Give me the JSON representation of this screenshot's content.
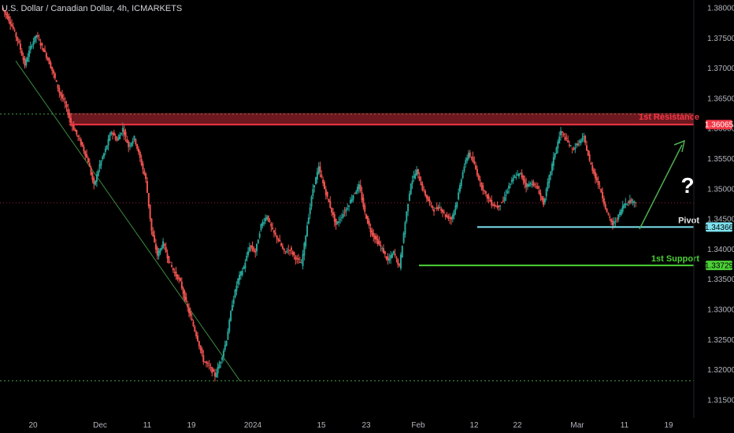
{
  "header": {
    "title": "U.S. Dollar / Canadian Dollar, 4h, ICMARKETS"
  },
  "colors": {
    "background": "#000000",
    "up_candle": "#26a69a",
    "down_candle": "#ef5350",
    "resistance": "#f23645",
    "pivot": "#7ee3f0",
    "support": "#4cd137",
    "dotted_level": "#4caf50",
    "arrow": "#4caf50",
    "axis_text": "#b2b5be"
  },
  "chart_data": {
    "type": "candlestick",
    "symbol": "USDCAD",
    "timeframe": "4h",
    "y_axis": {
      "range": [
        1.3142,
        1.3812
      ],
      "ticks": [
        "1.38000",
        "1.37500",
        "1.37000",
        "1.36500",
        "1.36000",
        "1.35500",
        "1.35000",
        "1.34500",
        "1.34000",
        "1.33500",
        "1.33000",
        "1.32500",
        "1.32000",
        "1.31500"
      ]
    },
    "x_axis": {
      "ticks": [
        "20",
        "Dec",
        "11",
        "19",
        "2024",
        "15",
        "23",
        "Feb",
        "12",
        "22",
        "Mar",
        "11",
        "19"
      ]
    },
    "price_path": [
      [
        0,
        1.38
      ],
      [
        4,
        1.3785
      ],
      [
        8,
        1.3765
      ],
      [
        12,
        1.374
      ],
      [
        16,
        1.3705
      ],
      [
        20,
        1.3735
      ],
      [
        24,
        1.3755
      ],
      [
        28,
        1.3735
      ],
      [
        32,
        1.3715
      ],
      [
        36,
        1.369
      ],
      [
        40,
        1.366
      ],
      [
        44,
        1.364
      ],
      [
        48,
        1.361
      ],
      [
        52,
        1.359
      ],
      [
        56,
        1.357
      ],
      [
        60,
        1.3545
      ],
      [
        64,
        1.3505
      ],
      [
        68,
        1.354
      ],
      [
        72,
        1.3565
      ],
      [
        76,
        1.3595
      ],
      [
        80,
        1.358
      ],
      [
        84,
        1.36
      ],
      [
        88,
        1.357
      ],
      [
        92,
        1.3585
      ],
      [
        96,
        1.355
      ],
      [
        100,
        1.3515
      ],
      [
        104,
        1.343
      ],
      [
        108,
        1.339
      ],
      [
        112,
        1.341
      ],
      [
        116,
        1.338
      ],
      [
        120,
        1.336
      ],
      [
        124,
        1.3345
      ],
      [
        128,
        1.331
      ],
      [
        132,
        1.328
      ],
      [
        136,
        1.325
      ],
      [
        140,
        1.3215
      ],
      [
        144,
        1.3205
      ],
      [
        148,
        1.319
      ],
      [
        152,
        1.3215
      ],
      [
        156,
        1.325
      ],
      [
        160,
        1.331
      ],
      [
        164,
        1.335
      ],
      [
        168,
        1.337
      ],
      [
        172,
        1.3405
      ],
      [
        176,
        1.3395
      ],
      [
        180,
        1.344
      ],
      [
        184,
        1.3455
      ],
      [
        188,
        1.343
      ],
      [
        192,
        1.3415
      ],
      [
        196,
        1.3395
      ],
      [
        200,
        1.34
      ],
      [
        204,
        1.3385
      ],
      [
        208,
        1.3375
      ],
      [
        212,
        1.344
      ],
      [
        216,
        1.35
      ],
      [
        220,
        1.3535
      ],
      [
        224,
        1.35
      ],
      [
        228,
        1.347
      ],
      [
        232,
        1.344
      ],
      [
        236,
        1.3455
      ],
      [
        240,
        1.347
      ],
      [
        244,
        1.349
      ],
      [
        248,
        1.3505
      ],
      [
        252,
        1.346
      ],
      [
        256,
        1.343
      ],
      [
        260,
        1.3415
      ],
      [
        264,
        1.34
      ],
      [
        268,
        1.338
      ],
      [
        272,
        1.3395
      ],
      [
        276,
        1.337
      ],
      [
        280,
        1.3445
      ],
      [
        284,
        1.351
      ],
      [
        288,
        1.353
      ],
      [
        292,
        1.35
      ],
      [
        296,
        1.348
      ],
      [
        300,
        1.3465
      ],
      [
        304,
        1.347
      ],
      [
        308,
        1.3455
      ],
      [
        312,
        1.345
      ],
      [
        316,
        1.348
      ],
      [
        320,
        1.353
      ],
      [
        324,
        1.356
      ],
      [
        328,
        1.354
      ],
      [
        332,
        1.351
      ],
      [
        336,
        1.349
      ],
      [
        340,
        1.3475
      ],
      [
        344,
        1.347
      ],
      [
        348,
        1.348
      ],
      [
        352,
        1.3505
      ],
      [
        356,
        1.352
      ],
      [
        360,
        1.3525
      ],
      [
        364,
        1.3505
      ],
      [
        368,
        1.351
      ],
      [
        372,
        1.35
      ],
      [
        376,
        1.3475
      ],
      [
        380,
        1.352
      ],
      [
        384,
        1.356
      ],
      [
        388,
        1.3595
      ],
      [
        392,
        1.358
      ],
      [
        396,
        1.3565
      ],
      [
        400,
        1.3575
      ],
      [
        404,
        1.3585
      ],
      [
        408,
        1.3545
      ],
      [
        412,
        1.352
      ],
      [
        416,
        1.3495
      ],
      [
        420,
        1.346
      ],
      [
        424,
        1.344
      ],
      [
        428,
        1.3455
      ],
      [
        432,
        1.3475
      ],
      [
        436,
        1.348
      ],
      [
        440,
        1.3478
      ]
    ],
    "levels": [
      {
        "name": "1st Resistance",
        "price": 1.36065,
        "zone": [
          1.36065,
          1.36255
        ],
        "tag": "1.36065"
      },
      {
        "name": "Pivot",
        "price": 1.34366,
        "tag": "1.34366"
      },
      {
        "name": "1st Support",
        "price": 1.33729,
        "tag": "1.33729"
      }
    ],
    "dotted_lines": [
      1.3624,
      1.31815,
      1.34765
    ],
    "annotation": "?"
  }
}
